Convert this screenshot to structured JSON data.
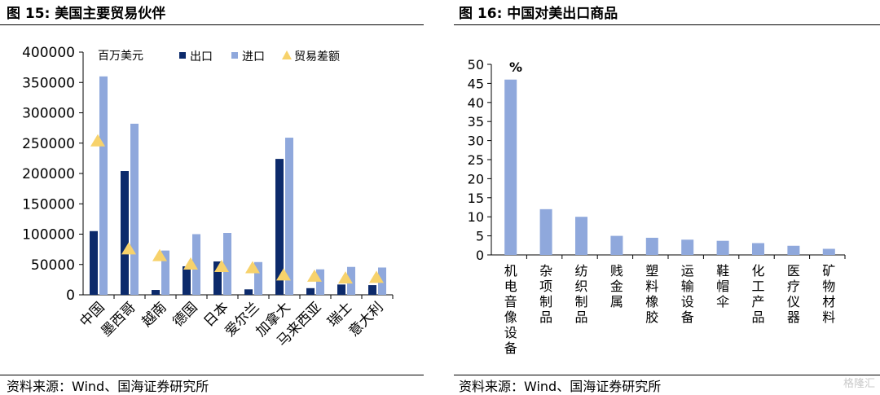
{
  "left": {
    "title": "图 15: 美国主要贸易伙伴",
    "source": "资料来源：Wind、国海证券研究所"
  },
  "right": {
    "title": "图 16: 中国对美出口商品",
    "source": "资料来源：Wind、国海证券研究所"
  },
  "watermark": "格隆汇",
  "chart_data": [
    {
      "type": "bar",
      "unit_label": "百万美元",
      "categories": [
        "中国",
        "墨西哥",
        "越南",
        "德国",
        "日本",
        "爱尔兰",
        "加拿大",
        "马来西亚",
        "瑞士",
        "意大利"
      ],
      "series": [
        {
          "name": "出口",
          "kind": "bar",
          "color": "#0c2a6b",
          "values": [
            105000,
            204000,
            8000,
            47000,
            55000,
            9000,
            224000,
            11000,
            17000,
            16000
          ]
        },
        {
          "name": "进口",
          "kind": "bar",
          "color": "#8fa8dc",
          "values": [
            360000,
            282000,
            73000,
            100000,
            102000,
            54000,
            259000,
            42000,
            46000,
            45000
          ]
        },
        {
          "name": "贸易差额",
          "kind": "marker",
          "color": "#f7d26b",
          "values": [
            254000,
            76000,
            65000,
            51000,
            47000,
            45000,
            33000,
            31000,
            28000,
            29000
          ]
        }
      ],
      "ylim": [
        0,
        400000
      ],
      "yticks": [
        "0",
        "50000",
        "100000",
        "150000",
        "200000",
        "250000",
        "300000",
        "350000",
        "400000"
      ],
      "legend_placement": "top"
    },
    {
      "type": "bar",
      "unit_label": "%",
      "categories": [
        "机电音像设备",
        "杂项制品",
        "纺织制品",
        "贱金属",
        "塑料橡胶",
        "运输设备",
        "鞋帽伞",
        "化工产品",
        "医疗仪器",
        "矿物材料"
      ],
      "series": [
        {
          "kind": "bar",
          "color": "#8fa8dc",
          "values": [
            46,
            12,
            10,
            5,
            4.5,
            4,
            3.7,
            3.1,
            2.4,
            1.6
          ]
        }
      ],
      "ylim": [
        0,
        50
      ],
      "yticks": [
        "0",
        "5",
        "10",
        "15",
        "20",
        "25",
        "30",
        "35",
        "40",
        "45",
        "50"
      ]
    }
  ]
}
